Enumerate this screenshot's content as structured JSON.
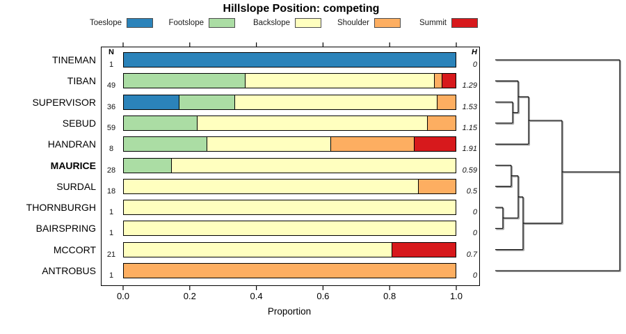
{
  "title": "Hillslope Position: competing",
  "columns": {
    "n_header": "N",
    "h_header": "H"
  },
  "axis": {
    "xlabel": "Proportion",
    "ticks": [
      "0.0",
      "0.2",
      "0.4",
      "0.6",
      "0.8",
      "1.0"
    ],
    "xlim": [
      0,
      1
    ]
  },
  "legend": {
    "items": [
      {
        "label": "Toeslope",
        "color": "#2B83BA"
      },
      {
        "label": "Footslope",
        "color": "#ABDDA4"
      },
      {
        "label": "Backslope",
        "color": "#FFFFBF"
      },
      {
        "label": "Shoulder",
        "color": "#FDAE61"
      },
      {
        "label": "Summit",
        "color": "#D7191C"
      }
    ]
  },
  "chart_data": {
    "type": "bar",
    "stacked": true,
    "orientation": "horizontal",
    "title": "Hillslope Position: competing",
    "xlabel": "Proportion",
    "xlim": [
      0,
      1
    ],
    "grid": false,
    "categories": [
      "Toeslope",
      "Footslope",
      "Backslope",
      "Shoulder",
      "Summit"
    ],
    "colors": {
      "Toeslope": "#2B83BA",
      "Footslope": "#ABDDA4",
      "Backslope": "#FFFFBF",
      "Shoulder": "#FDAE61",
      "Summit": "#D7191C"
    },
    "rows": [
      {
        "name": "TINEMAN",
        "n": 1,
        "h": "0",
        "bold": false,
        "segments": [
          {
            "category": "Toeslope",
            "value": 1.0
          }
        ]
      },
      {
        "name": "TIBAN",
        "n": 49,
        "h": "1.29",
        "bold": false,
        "segments": [
          {
            "category": "Footslope",
            "value": 0.3673
          },
          {
            "category": "Backslope",
            "value": 0.5714
          },
          {
            "category": "Shoulder",
            "value": 0.0204
          },
          {
            "category": "Summit",
            "value": 0.0408
          }
        ]
      },
      {
        "name": "SUPERVISOR",
        "n": 36,
        "h": "1.53",
        "bold": false,
        "segments": [
          {
            "category": "Toeslope",
            "value": 0.1667
          },
          {
            "category": "Footslope",
            "value": 0.1667
          },
          {
            "category": "Backslope",
            "value": 0.6111
          },
          {
            "category": "Shoulder",
            "value": 0.0556
          }
        ]
      },
      {
        "name": "SEBUD",
        "n": 59,
        "h": "1.15",
        "bold": false,
        "segments": [
          {
            "category": "Footslope",
            "value": 0.2203
          },
          {
            "category": "Backslope",
            "value": 0.6949
          },
          {
            "category": "Shoulder",
            "value": 0.0847
          }
        ]
      },
      {
        "name": "HANDRAN",
        "n": 8,
        "h": "1.91",
        "bold": false,
        "segments": [
          {
            "category": "Footslope",
            "value": 0.25
          },
          {
            "category": "Backslope",
            "value": 0.375
          },
          {
            "category": "Shoulder",
            "value": 0.25
          },
          {
            "category": "Summit",
            "value": 0.125
          }
        ]
      },
      {
        "name": "MAURICE",
        "n": 28,
        "h": "0.59",
        "bold": true,
        "segments": [
          {
            "category": "Footslope",
            "value": 0.1429
          },
          {
            "category": "Backslope",
            "value": 0.8571
          }
        ]
      },
      {
        "name": "SURDAL",
        "n": 18,
        "h": "0.5",
        "bold": false,
        "segments": [
          {
            "category": "Backslope",
            "value": 0.8889
          },
          {
            "category": "Shoulder",
            "value": 0.1111
          }
        ]
      },
      {
        "name": "THORNBURGH",
        "n": 1,
        "h": "0",
        "bold": false,
        "segments": [
          {
            "category": "Backslope",
            "value": 1.0
          }
        ]
      },
      {
        "name": "BAIRSPRING",
        "n": 1,
        "h": "0",
        "bold": false,
        "segments": [
          {
            "category": "Backslope",
            "value": 1.0
          }
        ]
      },
      {
        "name": "MCCORT",
        "n": 21,
        "h": "0.7",
        "bold": false,
        "segments": [
          {
            "category": "Backslope",
            "value": 0.8095
          },
          {
            "category": "Summit",
            "value": 0.1905
          }
        ]
      },
      {
        "name": "ANTROBUS",
        "n": 1,
        "h": "0",
        "bold": false,
        "segments": [
          {
            "category": "Shoulder",
            "value": 1.0
          }
        ]
      }
    ],
    "dendrogram": {
      "orientation": "right",
      "leaves": [
        "TINEMAN",
        "TIBAN",
        "SUPERVISOR",
        "SEBUD",
        "HANDRAN",
        "MAURICE",
        "SURDAL",
        "THORNBURGH",
        "BAIRSPRING",
        "MCCORT",
        "ANTROBUS"
      ],
      "merges": [
        {
          "id": "m1",
          "children": [
            "SUPERVISOR",
            "SEBUD"
          ],
          "height": 0.14
        },
        {
          "id": "m2",
          "children": [
            "TIBAN",
            "m1"
          ],
          "height": 0.184
        },
        {
          "id": "m3",
          "children": [
            "m2",
            "HANDRAN"
          ],
          "height": 0.268
        },
        {
          "id": "m4",
          "children": [
            "MAURICE",
            "SURDAL"
          ],
          "height": 0.128
        },
        {
          "id": "m5",
          "children": [
            "THORNBURGH",
            "BAIRSPRING"
          ],
          "height": 0.061
        },
        {
          "id": "m6",
          "children": [
            "m4",
            "m5"
          ],
          "height": 0.184
        },
        {
          "id": "m7",
          "children": [
            "m6",
            "MCCORT"
          ],
          "height": 0.223
        },
        {
          "id": "m8",
          "children": [
            "m3",
            "m7"
          ],
          "height": 0.536
        },
        {
          "id": "root",
          "children": [
            "TINEMAN",
            "m8",
            "ANTROBUS"
          ],
          "height": 1.0
        }
      ]
    }
  }
}
